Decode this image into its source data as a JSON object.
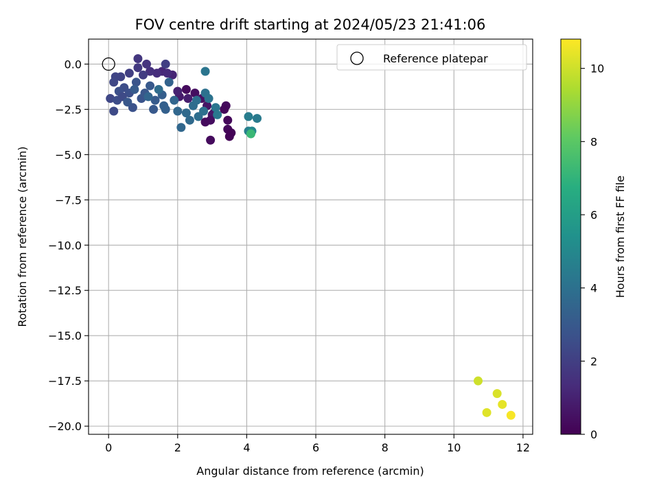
{
  "chart_data": {
    "type": "scatter",
    "title": "FOV centre drift starting at 2024/05/23 21:41:06",
    "xlabel": "Angular distance from reference (arcmin)",
    "ylabel": "Rotation from reference (arcmin)",
    "xlim": [
      -0.58,
      12.28
    ],
    "ylim": [
      -20.45,
      1.38
    ],
    "xticks": [
      "0",
      "2",
      "4",
      "6",
      "8",
      "10",
      "12"
    ],
    "xtick_values": [
      0,
      2,
      4,
      6,
      8,
      10,
      12
    ],
    "yticks": [
      "0.0",
      "−2.5",
      "−5.0",
      "−7.5",
      "−10.0",
      "−12.5",
      "−15.0",
      "−17.5",
      "−20.0"
    ],
    "ytick_values": [
      0,
      -2.5,
      -5,
      -7.5,
      -10,
      -12.5,
      -15,
      -17.5,
      -20
    ],
    "grid": true,
    "legend": {
      "position": "top-right",
      "label": "Reference platepar"
    },
    "reference_point": {
      "x": 0,
      "y": 0
    },
    "colorbar": {
      "label": "Hours from first FF file",
      "colormap": "viridis",
      "range": [
        0,
        10.8
      ],
      "ticks": [
        "0",
        "2",
        "4",
        "6",
        "8",
        "10"
      ],
      "tick_values": [
        0,
        2,
        4,
        6,
        8,
        10
      ]
    },
    "points": [
      {
        "x": 2.25,
        "y": -1.4,
        "h": 0.3
      },
      {
        "x": 2.5,
        "y": -1.6,
        "h": 0.4
      },
      {
        "x": 2.7,
        "y": -1.9,
        "h": 0.5
      },
      {
        "x": 2.85,
        "y": -2.3,
        "h": 0.6
      },
      {
        "x": 3.0,
        "y": -2.8,
        "h": 0.6
      },
      {
        "x": 3.05,
        "y": -2.7,
        "h": 0.7
      },
      {
        "x": 2.95,
        "y": -3.1,
        "h": 0.4
      },
      {
        "x": 2.8,
        "y": -3.2,
        "h": 0.3
      },
      {
        "x": 2.95,
        "y": -4.2,
        "h": 0.3
      },
      {
        "x": 3.4,
        "y": -2.3,
        "h": 0.3
      },
      {
        "x": 3.35,
        "y": -2.5,
        "h": 0.2
      },
      {
        "x": 3.45,
        "y": -3.1,
        "h": 0.2
      },
      {
        "x": 3.45,
        "y": -3.6,
        "h": 0.2
      },
      {
        "x": 3.55,
        "y": -3.8,
        "h": 0.1
      },
      {
        "x": 3.5,
        "y": -4.0,
        "h": 0.1
      },
      {
        "x": 2.05,
        "y": -1.8,
        "h": 0.8
      },
      {
        "x": 2.3,
        "y": -1.9,
        "h": 0.9
      },
      {
        "x": 2.0,
        "y": -1.5,
        "h": 1.0
      },
      {
        "x": 1.85,
        "y": -0.6,
        "h": 1.1
      },
      {
        "x": 1.55,
        "y": -0.4,
        "h": 1.2
      },
      {
        "x": 1.7,
        "y": -0.5,
        "h": 1.3
      },
      {
        "x": 1.4,
        "y": -0.5,
        "h": 1.4
      },
      {
        "x": 1.2,
        "y": -0.4,
        "h": 1.5
      },
      {
        "x": 1.1,
        "y": 0.0,
        "h": 1.6
      },
      {
        "x": 0.85,
        "y": 0.3,
        "h": 1.7
      },
      {
        "x": 0.85,
        "y": -0.2,
        "h": 1.8
      },
      {
        "x": 1.0,
        "y": -0.6,
        "h": 1.9
      },
      {
        "x": 0.6,
        "y": -0.5,
        "h": 2.0
      },
      {
        "x": 1.65,
        "y": 0.0,
        "h": 2.0
      },
      {
        "x": 0.35,
        "y": -0.7,
        "h": 2.1
      },
      {
        "x": 0.2,
        "y": -0.7,
        "h": 2.2
      },
      {
        "x": 0.15,
        "y": -1.0,
        "h": 2.3
      },
      {
        "x": 0.05,
        "y": -1.9,
        "h": 2.3
      },
      {
        "x": 0.15,
        "y": -2.6,
        "h": 2.4
      },
      {
        "x": 0.25,
        "y": -2.0,
        "h": 2.5
      },
      {
        "x": 0.45,
        "y": -1.3,
        "h": 2.5
      },
      {
        "x": 0.6,
        "y": -1.6,
        "h": 2.6
      },
      {
        "x": 0.3,
        "y": -1.5,
        "h": 2.6
      },
      {
        "x": 0.7,
        "y": -2.4,
        "h": 2.7
      },
      {
        "x": 0.8,
        "y": -1.0,
        "h": 2.8
      },
      {
        "x": 0.95,
        "y": -1.9,
        "h": 2.8
      },
      {
        "x": 1.05,
        "y": -1.6,
        "h": 2.9
      },
      {
        "x": 1.2,
        "y": -1.2,
        "h": 3.0
      },
      {
        "x": 1.3,
        "y": -2.5,
        "h": 3.0
      },
      {
        "x": 1.35,
        "y": -2.0,
        "h": 3.1
      },
      {
        "x": 1.55,
        "y": -1.7,
        "h": 3.2
      },
      {
        "x": 1.6,
        "y": -2.3,
        "h": 3.3
      },
      {
        "x": 1.65,
        "y": -2.5,
        "h": 3.3
      },
      {
        "x": 1.75,
        "y": -1.0,
        "h": 3.4
      },
      {
        "x": 1.9,
        "y": -2.0,
        "h": 3.5
      },
      {
        "x": 2.0,
        "y": -2.6,
        "h": 3.6
      },
      {
        "x": 2.1,
        "y": -3.5,
        "h": 3.6
      },
      {
        "x": 2.25,
        "y": -2.7,
        "h": 3.7
      },
      {
        "x": 2.35,
        "y": -3.1,
        "h": 3.7
      },
      {
        "x": 2.45,
        "y": -2.3,
        "h": 3.8
      },
      {
        "x": 2.6,
        "y": -2.9,
        "h": 3.9
      },
      {
        "x": 2.75,
        "y": -2.6,
        "h": 4.0
      },
      {
        "x": 2.8,
        "y": -1.6,
        "h": 4.0
      },
      {
        "x": 2.9,
        "y": -1.9,
        "h": 4.1
      },
      {
        "x": 2.8,
        "y": -0.4,
        "h": 4.2
      },
      {
        "x": 3.1,
        "y": -2.4,
        "h": 4.2
      },
      {
        "x": 3.15,
        "y": -2.8,
        "h": 4.3
      },
      {
        "x": 1.45,
        "y": -1.4,
        "h": 3.8
      },
      {
        "x": 0.4,
        "y": -1.8,
        "h": 2.4
      },
      {
        "x": 0.55,
        "y": -2.1,
        "h": 2.9
      },
      {
        "x": 0.75,
        "y": -1.4,
        "h": 3.1
      },
      {
        "x": 1.15,
        "y": -1.8,
        "h": 3.5
      },
      {
        "x": 2.55,
        "y": -2.0,
        "h": 3.9
      },
      {
        "x": 4.05,
        "y": -2.9,
        "h": 4.5
      },
      {
        "x": 4.3,
        "y": -3.0,
        "h": 4.4
      },
      {
        "x": 4.05,
        "y": -3.7,
        "h": 4.6
      },
      {
        "x": 4.15,
        "y": -3.7,
        "h": 5.0
      },
      {
        "x": 4.12,
        "y": -3.85,
        "h": 7.2
      },
      {
        "x": 10.7,
        "y": -17.5,
        "h": 10.0
      },
      {
        "x": 11.25,
        "y": -18.2,
        "h": 10.2
      },
      {
        "x": 11.4,
        "y": -18.8,
        "h": 10.4
      },
      {
        "x": 10.95,
        "y": -19.25,
        "h": 10.3
      },
      {
        "x": 11.65,
        "y": -19.4,
        "h": 10.7
      }
    ]
  }
}
